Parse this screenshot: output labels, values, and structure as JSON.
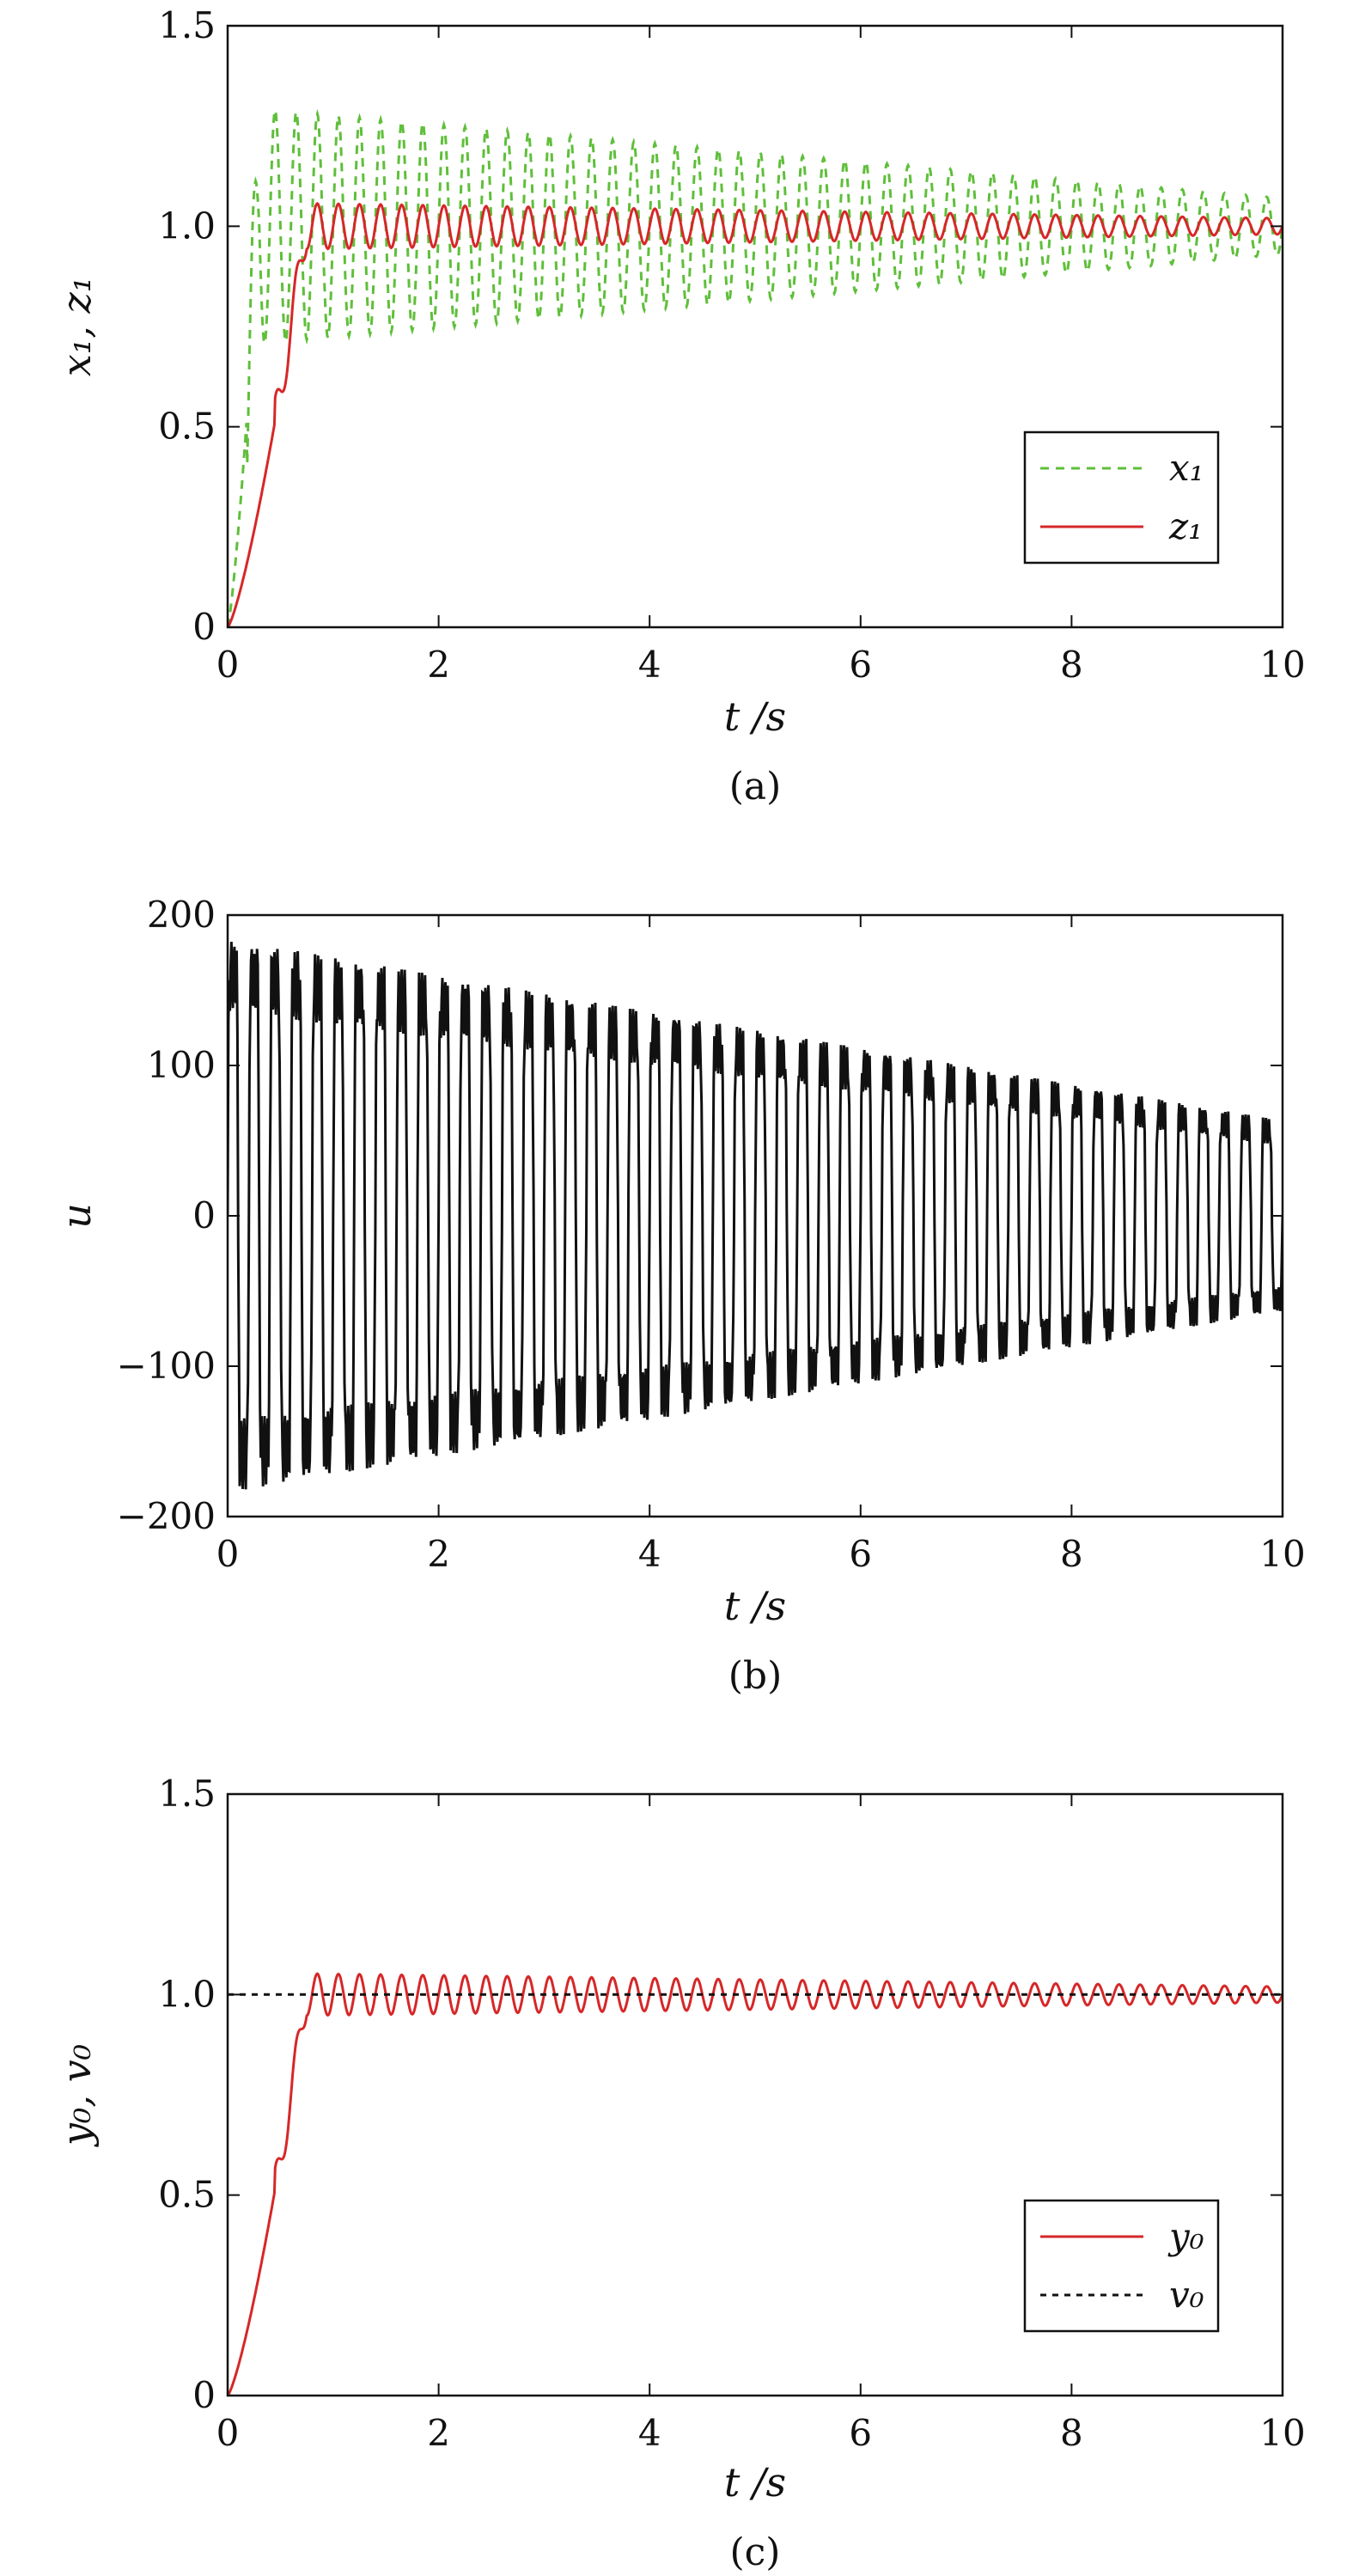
{
  "chart_data": [
    {
      "id": "a",
      "type": "line",
      "caption": "(a)",
      "xlabel": "t /s",
      "ylabel": "x₁, z₁",
      "xlim": [
        0,
        10
      ],
      "ylim": [
        0,
        1.5
      ],
      "xticks": [
        "0",
        "2",
        "4",
        "6",
        "8",
        "10"
      ],
      "yticks": [
        "0",
        "0.5",
        "1.0",
        "1.5"
      ],
      "legend_position": "bottom-right",
      "series": [
        {
          "name": "x₁",
          "color": "#5fbf3a",
          "style": "dotted",
          "model": {
            "kind": "decaying-oscillation",
            "final": 1.0,
            "amp_start": 0.3,
            "amp_end": 0.07,
            "freq_hz": 5.0,
            "rise_time": 0.3
          }
        },
        {
          "name": "z₁",
          "color": "#d62728",
          "style": "solid",
          "model": {
            "kind": "decaying-oscillation",
            "final": 1.0,
            "amp_start": 0.06,
            "amp_end": 0.02,
            "freq_hz": 5.0,
            "rise_time": 0.75
          }
        }
      ]
    },
    {
      "id": "b",
      "type": "line",
      "caption": "(b)",
      "xlabel": "t /s",
      "ylabel": "u",
      "xlim": [
        0,
        10
      ],
      "ylim": [
        -200,
        200
      ],
      "xticks": [
        "0",
        "2",
        "4",
        "6",
        "8",
        "10"
      ],
      "yticks": [
        "−200",
        "−100",
        "0",
        "100",
        "200"
      ],
      "series": [
        {
          "name": "",
          "color": "#111111",
          "style": "solid",
          "model": {
            "kind": "square-oscillation",
            "final": 0,
            "amp_start": 160,
            "amp_end": 55,
            "freq_hz": 5.0,
            "rise_time": 0.0
          }
        }
      ]
    },
    {
      "id": "c",
      "type": "line",
      "caption": "(c)",
      "xlabel": "t /s",
      "ylabel": "y₀, v₀",
      "xlim": [
        0,
        10
      ],
      "ylim": [
        0,
        1.5
      ],
      "xticks": [
        "0",
        "2",
        "4",
        "6",
        "8",
        "10"
      ],
      "yticks": [
        "0",
        "0.5",
        "1.0",
        "1.5"
      ],
      "legend_position": "bottom-right",
      "series": [
        {
          "name": "y₀",
          "color": "#d62728",
          "style": "solid",
          "model": {
            "kind": "decaying-oscillation",
            "final": 1.0,
            "amp_start": 0.055,
            "amp_end": 0.02,
            "freq_hz": 5.0,
            "rise_time": 0.75
          }
        },
        {
          "name": "v₀",
          "color": "#111111",
          "style": "dashed",
          "model": {
            "kind": "constant",
            "final": 1.0
          }
        }
      ]
    }
  ]
}
